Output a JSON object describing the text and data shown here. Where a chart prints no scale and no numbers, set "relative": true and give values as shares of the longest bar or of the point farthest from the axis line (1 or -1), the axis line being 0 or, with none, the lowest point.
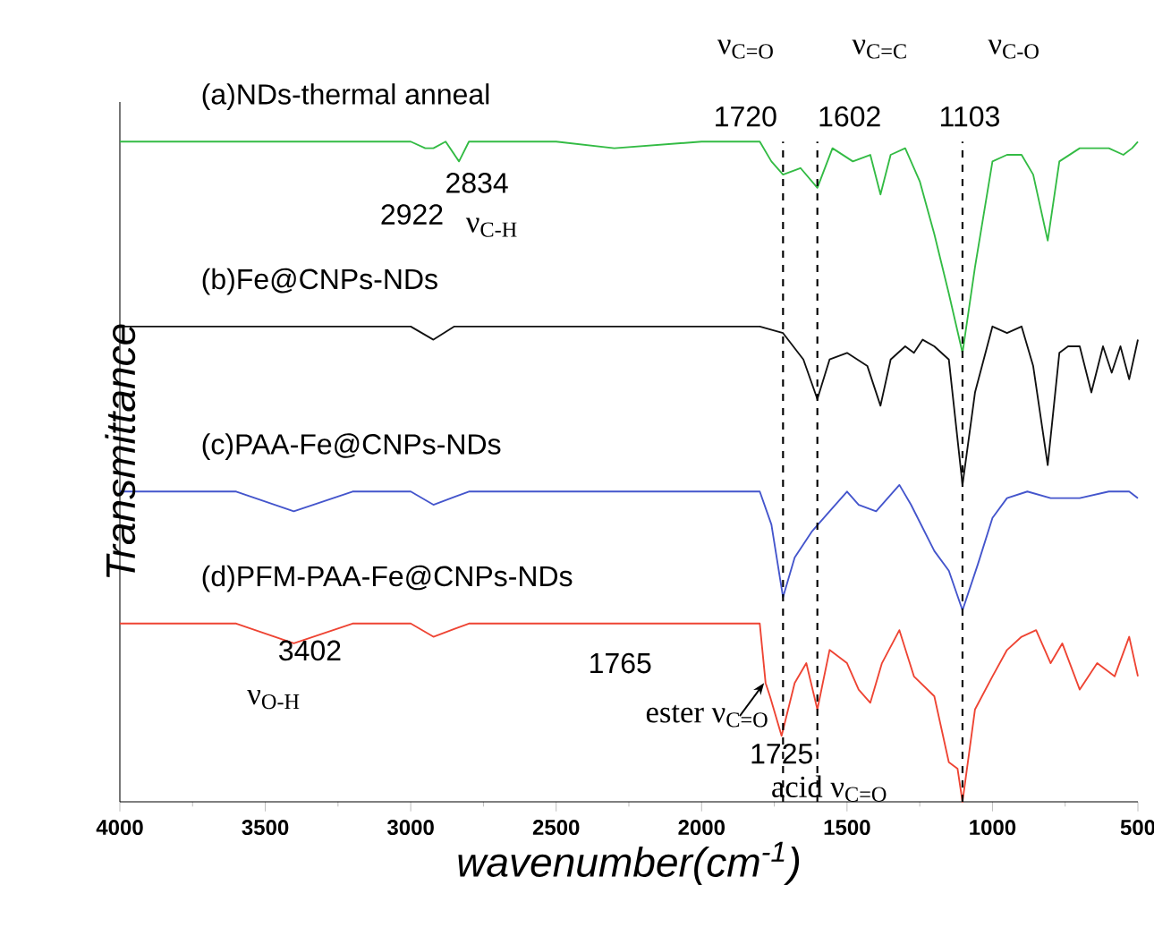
{
  "chart_data": {
    "type": "line",
    "relative": true,
    "xlabel": "wavenumber(cm$^{-1}$)",
    "ylabel": "Transmittance",
    "xlim": [
      4000,
      500
    ],
    "xticks": [
      4000,
      3500,
      3000,
      2500,
      2000,
      1500,
      1000,
      500
    ],
    "series": [
      {
        "name": "(a)NDs-thermal anneal",
        "color": "#33bb44",
        "x": [
          4000,
          3500,
          3000,
          2950,
          2922,
          2880,
          2834,
          2800,
          2500,
          2300,
          2000,
          1800,
          1760,
          1720,
          1660,
          1602,
          1550,
          1480,
          1420,
          1385,
          1350,
          1300,
          1250,
          1200,
          1150,
          1103,
          1060,
          1000,
          950,
          900,
          860,
          810,
          770,
          700,
          650,
          600,
          550,
          520,
          500
        ],
        "values": [
          1.0,
          1.0,
          1.0,
          0.99,
          0.99,
          1.0,
          0.97,
          1.0,
          1.0,
          0.99,
          1.0,
          1.0,
          0.97,
          0.95,
          0.96,
          0.93,
          0.99,
          0.97,
          0.98,
          0.92,
          0.98,
          0.99,
          0.94,
          0.86,
          0.77,
          0.68,
          0.81,
          0.97,
          0.98,
          0.98,
          0.95,
          0.85,
          0.97,
          0.99,
          0.99,
          0.99,
          0.98,
          0.99,
          1.0
        ]
      },
      {
        "name": "(b)Fe@CNPs-NDs",
        "color": "#111111",
        "x": [
          4000,
          3500,
          3000,
          2922,
          2850,
          2500,
          2000,
          1800,
          1720,
          1650,
          1602,
          1560,
          1500,
          1430,
          1385,
          1350,
          1300,
          1270,
          1240,
          1200,
          1150,
          1103,
          1060,
          1000,
          950,
          900,
          860,
          810,
          770,
          740,
          700,
          660,
          620,
          590,
          560,
          530,
          500
        ],
        "values": [
          0.72,
          0.72,
          0.72,
          0.7,
          0.72,
          0.72,
          0.72,
          0.72,
          0.71,
          0.67,
          0.61,
          0.67,
          0.68,
          0.66,
          0.6,
          0.67,
          0.69,
          0.68,
          0.7,
          0.69,
          0.67,
          0.48,
          0.62,
          0.72,
          0.71,
          0.72,
          0.66,
          0.51,
          0.68,
          0.69,
          0.69,
          0.62,
          0.69,
          0.65,
          0.69,
          0.64,
          0.7
        ]
      },
      {
        "name": "(c)PAA-Fe@CNPs-NDs",
        "color": "#4455cc",
        "x": [
          4000,
          3600,
          3402,
          3200,
          3000,
          2922,
          2800,
          2500,
          2000,
          1800,
          1760,
          1720,
          1680,
          1620,
          1560,
          1500,
          1460,
          1400,
          1320,
          1280,
          1200,
          1150,
          1103,
          1050,
          1000,
          950,
          880,
          800,
          700,
          600,
          530,
          500
        ],
        "values": [
          0.47,
          0.47,
          0.44,
          0.47,
          0.47,
          0.45,
          0.47,
          0.47,
          0.47,
          0.47,
          0.42,
          0.31,
          0.37,
          0.41,
          0.44,
          0.47,
          0.45,
          0.44,
          0.48,
          0.45,
          0.38,
          0.35,
          0.29,
          0.36,
          0.43,
          0.46,
          0.47,
          0.46,
          0.46,
          0.47,
          0.47,
          0.46
        ]
      },
      {
        "name": "(d)PFM-PAA-Fe@CNPs-NDs",
        "color": "#ee4433",
        "x": [
          4000,
          3600,
          3402,
          3200,
          3000,
          2922,
          2800,
          2500,
          2000,
          1800,
          1780,
          1765,
          1725,
          1680,
          1640,
          1602,
          1560,
          1500,
          1460,
          1420,
          1380,
          1320,
          1270,
          1200,
          1150,
          1120,
          1103,
          1060,
          1000,
          950,
          900,
          850,
          800,
          760,
          700,
          640,
          580,
          530,
          500
        ],
        "values": [
          0.27,
          0.27,
          0.24,
          0.27,
          0.27,
          0.25,
          0.27,
          0.27,
          0.27,
          0.27,
          0.18,
          0.16,
          0.1,
          0.18,
          0.21,
          0.14,
          0.23,
          0.21,
          0.17,
          0.15,
          0.21,
          0.26,
          0.19,
          0.16,
          0.06,
          0.05,
          0.0,
          0.14,
          0.19,
          0.23,
          0.25,
          0.26,
          0.21,
          0.24,
          0.17,
          0.21,
          0.19,
          0.25,
          0.19
        ]
      }
    ],
    "ref_lines": [
      {
        "axis": "x",
        "value": 1720,
        "label": "1720",
        "color": "#000000",
        "line_style": "dashed"
      },
      {
        "axis": "x",
        "value": 1602,
        "label": "1602",
        "color": "#000000",
        "line_style": "dashed"
      },
      {
        "axis": "x",
        "value": 1103,
        "label": "1103",
        "color": "#000000",
        "line_style": "dashed"
      }
    ],
    "annotations": [
      "ν$_{C=O}$",
      "ν$_{C=C}$",
      "ν$_{C-O}$",
      "ν$_{C-H}$",
      "ν$_{O-H}$",
      "ester ν$_{C=O}$",
      "acid ν$_{C=O}$",
      {
        "text": "2834",
        "x": 2834,
        "y": 0.97
      },
      {
        "text": "2922",
        "x": 2922,
        "y": 0.99
      },
      {
        "text": "3402",
        "x": 3402,
        "y": 0.24
      },
      "1765",
      {
        "text": "1725",
        "x": 1725,
        "y": 0.1
      }
    ],
    "grid": false,
    "line_style": "solid"
  }
}
